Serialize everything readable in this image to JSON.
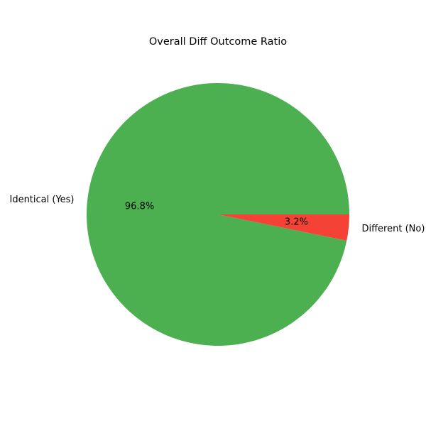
{
  "chart_data": {
    "type": "pie",
    "title": "Overall Diff Outcome Ratio",
    "labels": [
      "Identical (Yes)",
      "Different (No)"
    ],
    "values": [
      96.8,
      3.2
    ],
    "percent_labels": [
      "96.8%",
      "3.2%"
    ],
    "colors": [
      "#4caf50",
      "#f44336"
    ],
    "start_angle_deg": 0,
    "direction": "counterclockwise",
    "legend": "none"
  }
}
